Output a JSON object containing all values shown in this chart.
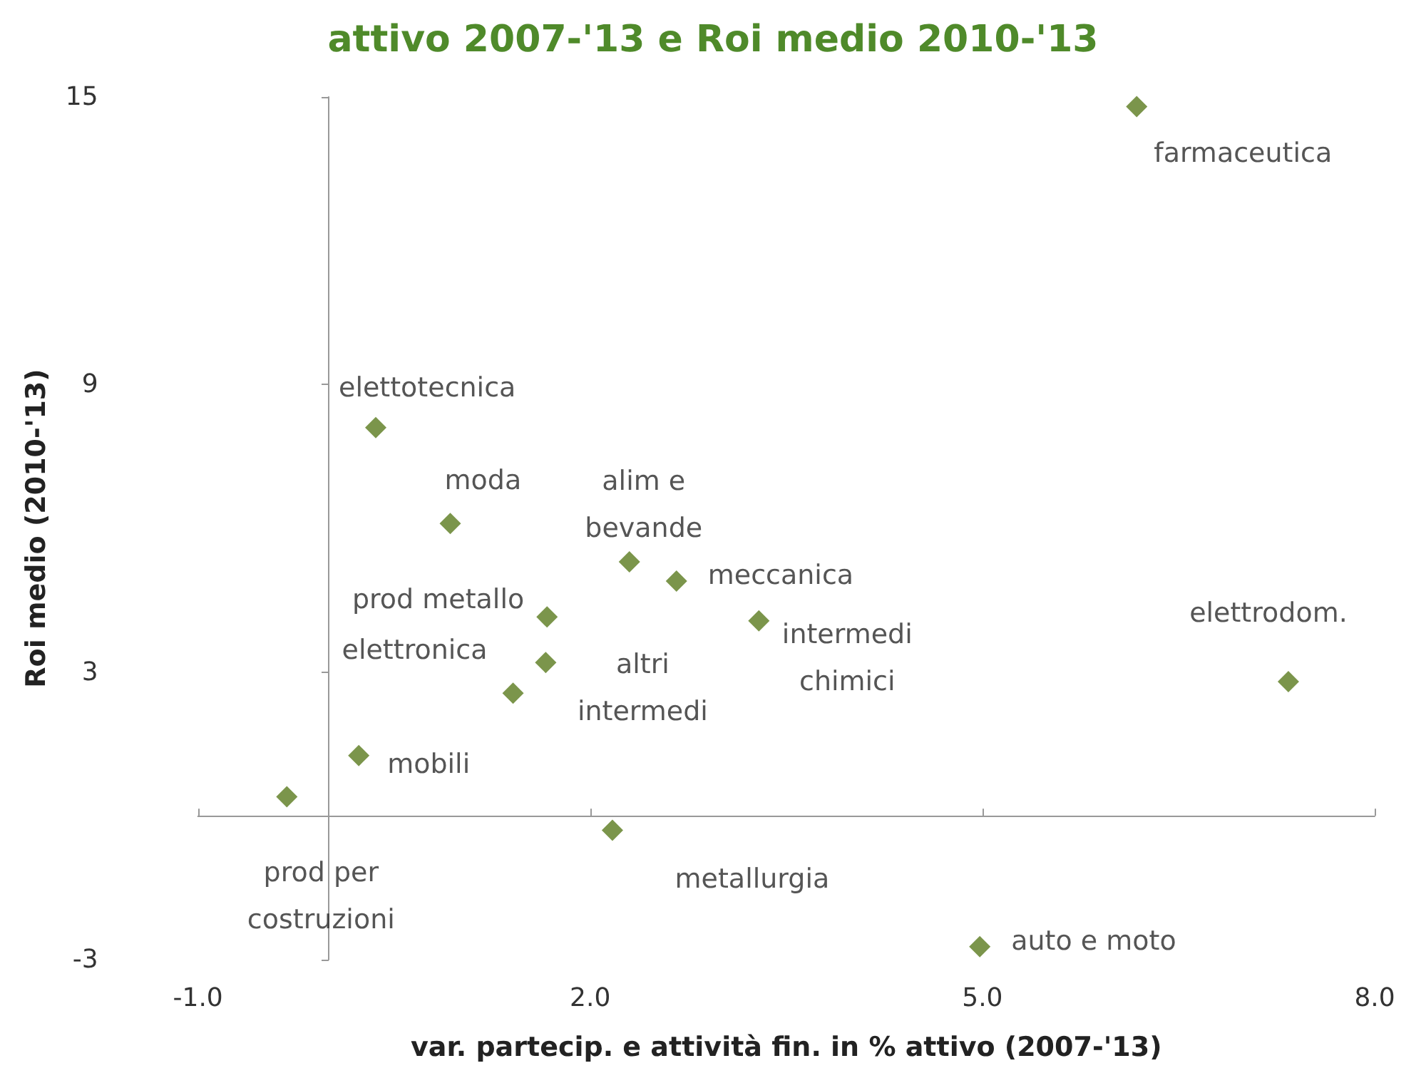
{
  "chart_data": {
    "type": "scatter",
    "title": "attivo 2007-'13 e Roi medio 2010-'13",
    "xlabel": "var. partecip. e attività fin. in % attivo (2007-'13)",
    "ylabel": "Roi medio (2010-'13)",
    "xlim": [
      -1,
      8
    ],
    "xticks": [
      {
        "value": -1,
        "label": "-1.0"
      },
      {
        "value": 2,
        "label": "2.0"
      },
      {
        "value": 5,
        "label": "5.0"
      },
      {
        "value": 8,
        "label": "8.0"
      }
    ],
    "ylim": [
      -3,
      15
    ],
    "yticks": [
      -3,
      3,
      9,
      15
    ],
    "grid": false,
    "marker": "diamond",
    "series": [
      {
        "color": "#5a7a1e",
        "x": [
          6.18,
          0.36,
          0.93,
          2.3,
          2.66,
          1.67,
          3.29,
          1.66,
          1.41,
          7.34,
          0.23,
          -0.32,
          2.17,
          4.98
        ],
        "values": [
          14.8,
          8.1,
          6.1,
          5.3,
          4.9,
          4.15,
          4.07,
          3.2,
          2.56,
          2.8,
          1.26,
          0.4,
          -0.3,
          -2.73
        ]
      }
    ],
    "annotations": [
      {
        "text": "farmaceutica",
        "x": 6.18,
        "y": 14.8
      },
      {
        "text": "elettotecnica",
        "x": 0.36,
        "y": 8.1
      },
      {
        "text": "moda",
        "x": 0.93,
        "y": 6.1
      },
      {
        "text": "alim e\nbevande",
        "x": 2.3,
        "y": 5.3
      },
      {
        "text": "meccanica",
        "x": 2.66,
        "y": 4.9
      },
      {
        "text": "prod metallo",
        "x": 1.67,
        "y": 4.15
      },
      {
        "text": "intermedi\nchimici",
        "x": 3.29,
        "y": 4.07
      },
      {
        "text": "altri\nintermedi",
        "x": 1.66,
        "y": 3.2
      },
      {
        "text": "elettronica",
        "x": 1.41,
        "y": 2.56
      },
      {
        "text": "elettrodom.",
        "x": 7.34,
        "y": 2.8
      },
      {
        "text": "mobili",
        "x": 0.23,
        "y": 1.26
      },
      {
        "text": "prod per\ncostruzioni",
        "x": -0.32,
        "y": 0.4
      },
      {
        "text": "metallurgia",
        "x": 2.17,
        "y": -0.3
      },
      {
        "text": "auto e moto",
        "x": 4.98,
        "y": -2.73
      }
    ]
  }
}
